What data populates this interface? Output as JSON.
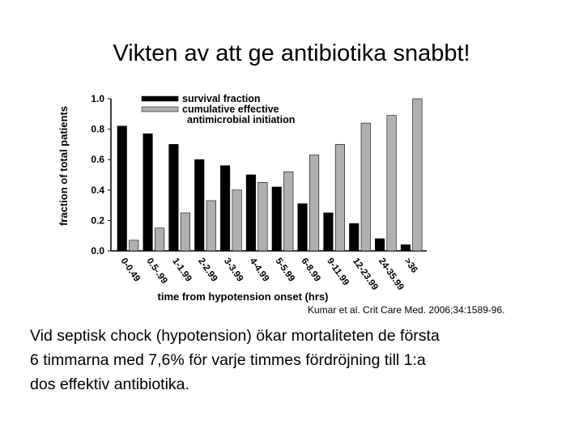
{
  "slide": {
    "title": "Vikten av att ge antibiotika snabbt!",
    "citation": "Kumar et al. Crit Care Med. 2006;34:1589-96.",
    "body_lines": [
      "Vid septisk chock (hypotension) ökar mortaliteten de första",
      "6 timmarna med 7,6% för varje timmes fördröjning till 1:a",
      "dos effektiv antibiotika."
    ]
  },
  "chart_data": {
    "type": "bar",
    "xlabel": "time from hypotension onset (hrs)",
    "ylabel": "fraction of total patients",
    "ylim": [
      0,
      1.0
    ],
    "yticks": [
      "0.0",
      "0.2",
      "0.4",
      "0.6",
      "0.8",
      "1.0"
    ],
    "categories": [
      "0-0.49",
      "0.5-.99",
      "1-1.99",
      "2-2.99",
      "3-3.99",
      "4-4.99",
      "5-5.99",
      "6-8.99",
      "9-11.99",
      "12-23.99",
      "24-35.99",
      ">36"
    ],
    "legend_position": "top-left",
    "series": [
      {
        "name": "survival fraction",
        "color": "#000000",
        "values": [
          0.82,
          0.77,
          0.7,
          0.6,
          0.56,
          0.5,
          0.42,
          0.31,
          0.25,
          0.18,
          0.08,
          0.04
        ]
      },
      {
        "name": "cumulative effective antimicrobial initiation",
        "color": "#b0b0b0",
        "values": [
          0.07,
          0.15,
          0.25,
          0.33,
          0.4,
          0.45,
          0.52,
          0.63,
          0.7,
          0.84,
          0.89,
          1.0
        ]
      }
    ],
    "legend_labels": [
      "survival fraction",
      "cumulative effective",
      "antimicrobial initiation"
    ]
  }
}
